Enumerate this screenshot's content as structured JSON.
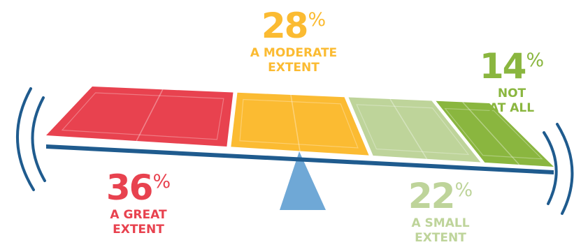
{
  "chart_data": {
    "type": "bar",
    "categories": [
      "A GREAT EXTENT",
      "A MODERATE EXTENT",
      "A SMALL EXTENT",
      "NOT AT ALL"
    ],
    "values": [
      36,
      28,
      22,
      14
    ],
    "unit": "%",
    "colors": [
      "#e8424f",
      "#fbbb32",
      "#bed49a",
      "#8ab63f"
    ],
    "labels": [
      {
        "value": "36",
        "unit": "%",
        "line1": "A GREAT",
        "line2": "EXTENT"
      },
      {
        "value": "28",
        "unit": "%",
        "line1": "A MODERATE",
        "line2": "EXTENT"
      },
      {
        "value": "22",
        "unit": "%",
        "line1": "A SMALL",
        "line2": "EXTENT"
      },
      {
        "value": "14",
        "unit": "%",
        "line1": "NOT",
        "line2": "AT ALL"
      }
    ]
  },
  "decoration": {
    "beam_color": "#1f5b8e",
    "pivot_color": "#6fa8d6",
    "arc_color": "#1f5b8e"
  }
}
